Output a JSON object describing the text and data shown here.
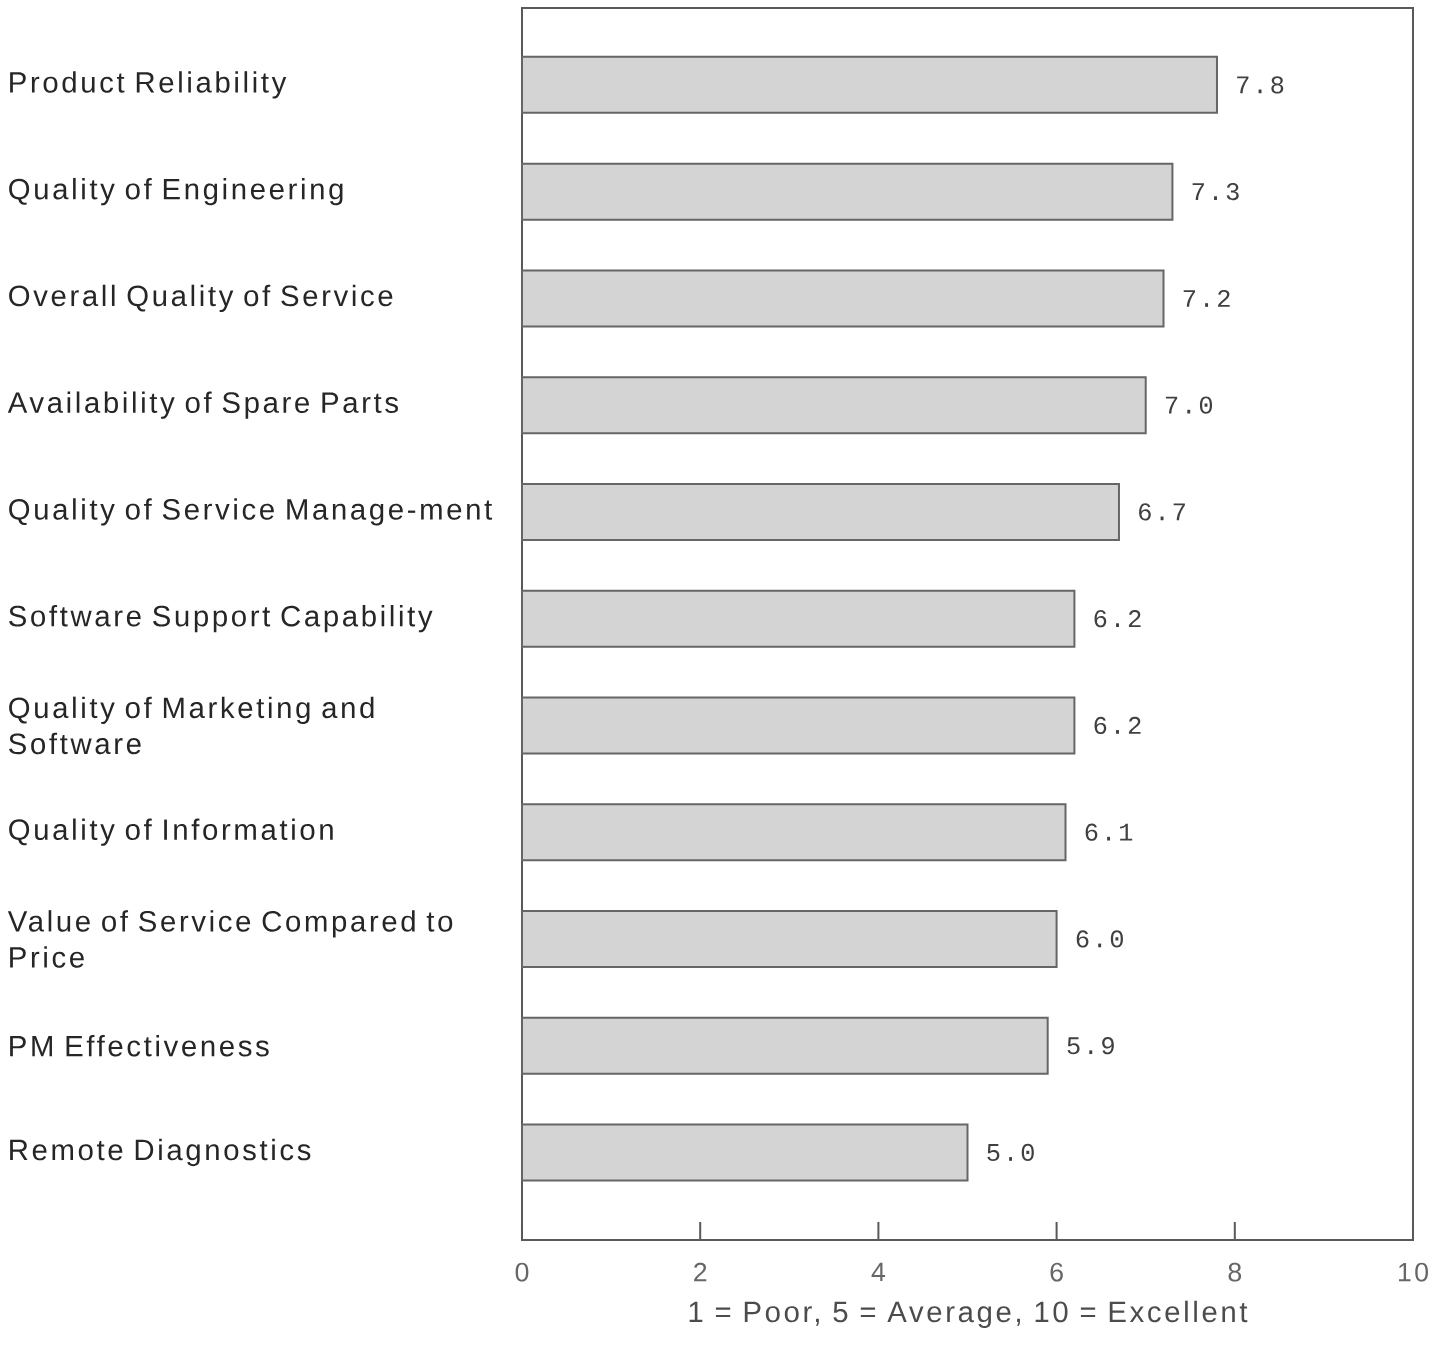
{
  "chart_data": {
    "type": "bar",
    "orientation": "horizontal",
    "categories": [
      "Product Reliability",
      "Quality of Engineering",
      "Overall Quality of Service",
      "Availability of Spare Parts",
      "Quality of Service Manage-ment",
      "Software Support Capability",
      "Quality of Marketing and Software",
      "Quality of Information",
      "Value of Service Compared to Price",
      "PM Effectiveness",
      "Remote Diagnostics"
    ],
    "values": [
      7.8,
      7.3,
      7.2,
      7.0,
      6.7,
      6.2,
      6.2,
      6.1,
      6.0,
      5.9,
      5.0
    ],
    "value_labels": [
      "7.8",
      "7.3",
      "7.2",
      "7.0",
      "6.7",
      "6.2",
      "6.2",
      "6.1",
      "6.0",
      "5.9",
      "5.0"
    ],
    "color": "#d4d4d4",
    "xlim": [
      0,
      10
    ],
    "xticks": [
      0,
      2,
      4,
      6,
      8,
      10
    ],
    "xlabel": "1 = Poor, 5 = Average, 10 = Excellent",
    "grid": false
  }
}
